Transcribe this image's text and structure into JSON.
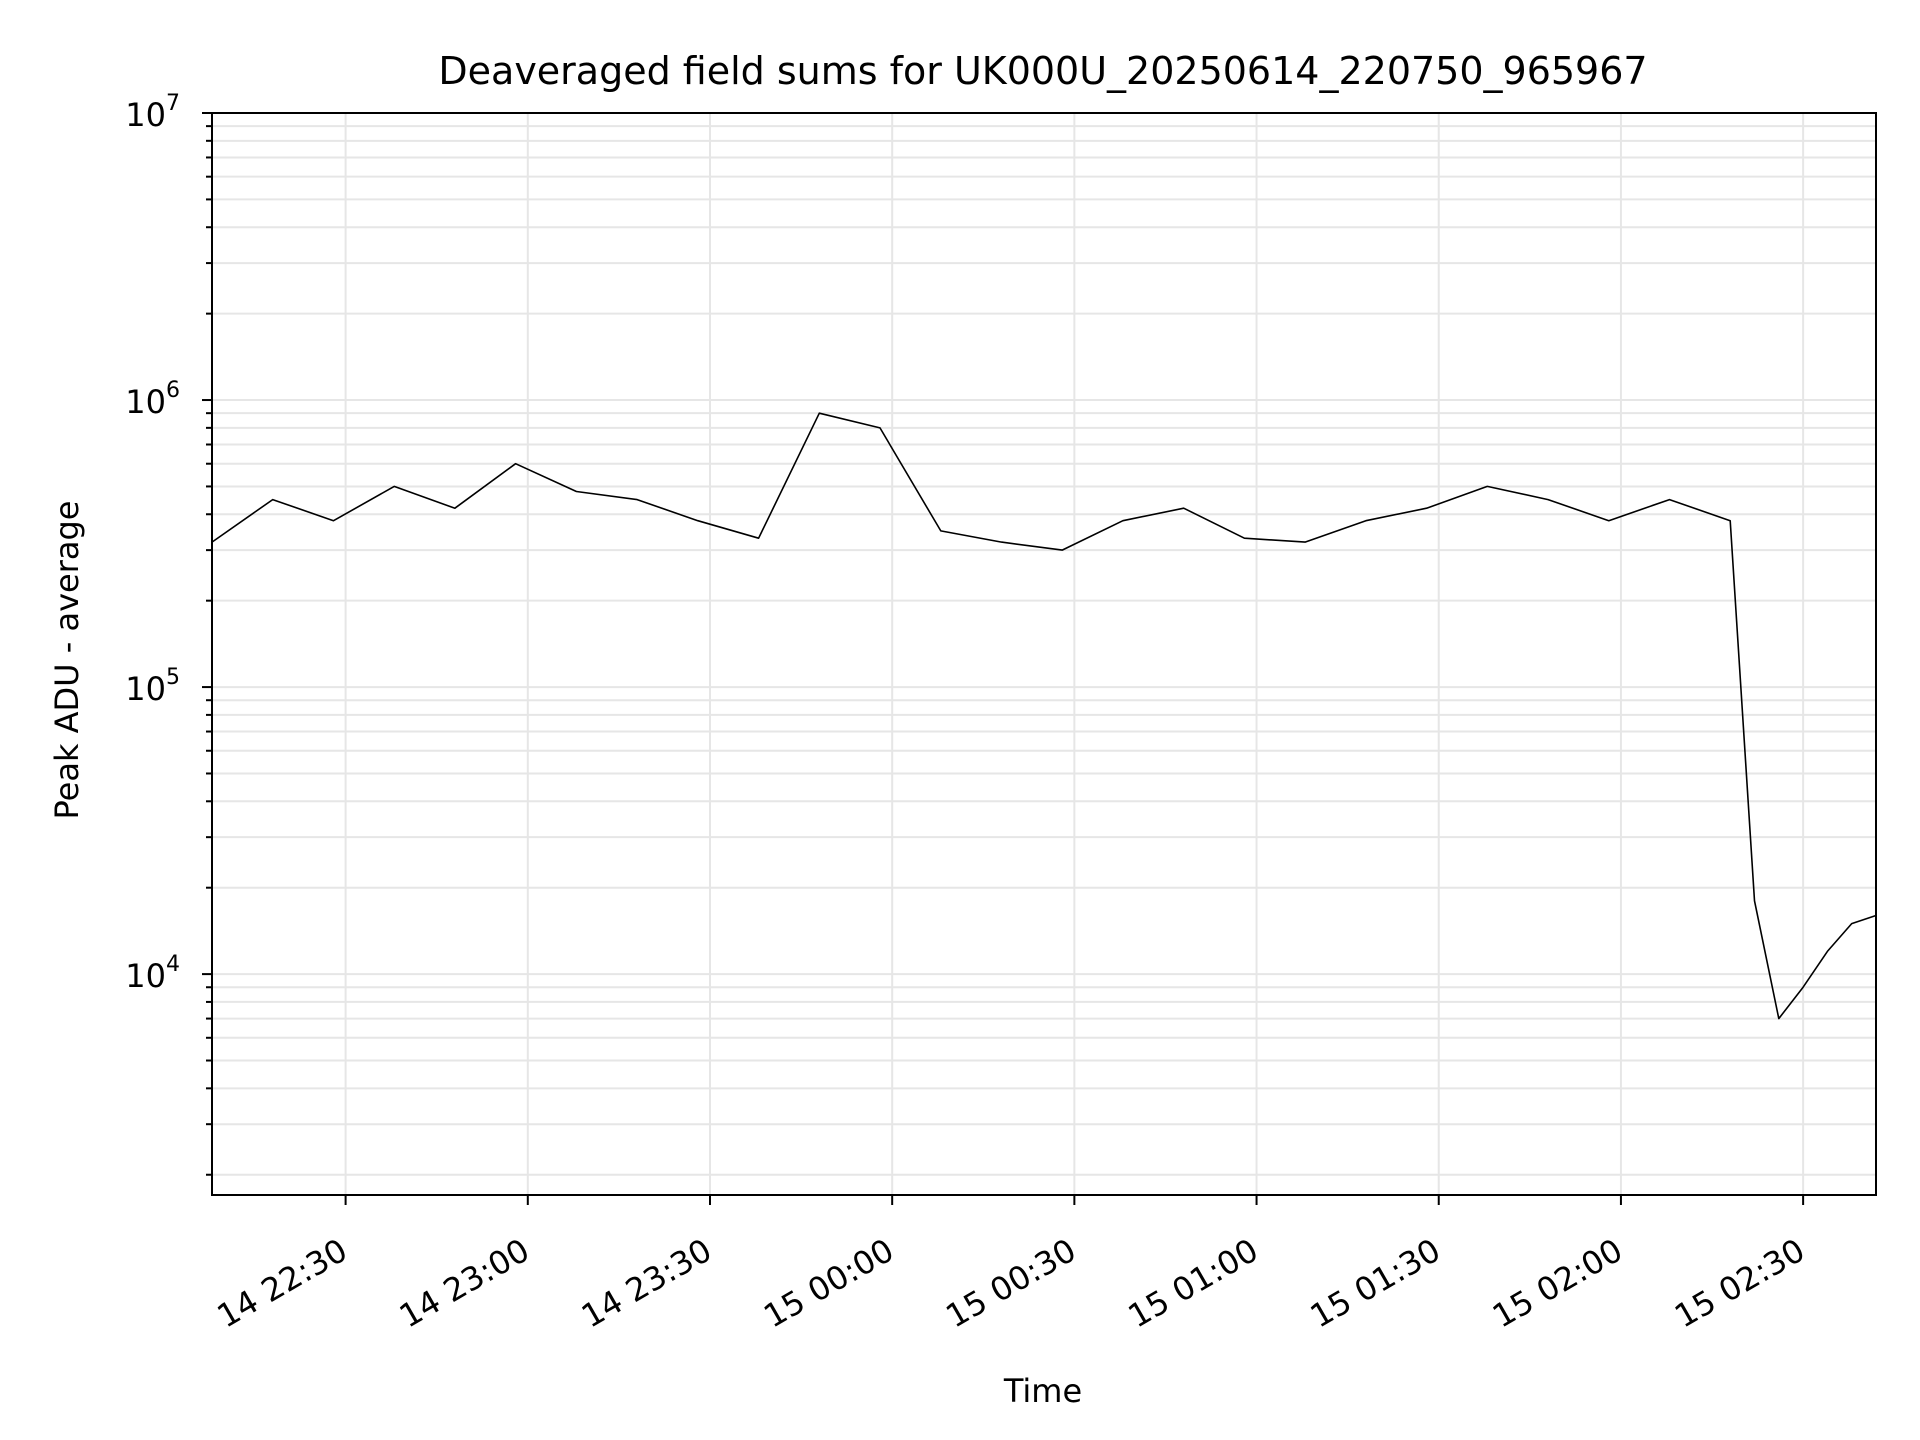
{
  "chart_data": {
    "type": "line",
    "title": "Deaveraged field sums for UK000U_20250614_220750_965967",
    "xlabel": "Time",
    "ylabel": "Peak ADU - average",
    "yscale": "log",
    "ylim": [
      1700,
      10000000
    ],
    "xlim": [
      "2025-06-14 22:08",
      "2025-06-15 02:42"
    ],
    "grid": true,
    "line_color": "#000000",
    "grid_color": "#e6e6e6",
    "x_tick_labels": [
      "14 22:30",
      "14 23:00",
      "14 23:30",
      "15 00:00",
      "15 00:30",
      "15 01:00",
      "15 01:30",
      "15 02:00",
      "15 02:30"
    ],
    "y_tick_labels": [
      {
        "base": "10",
        "exp": "4"
      },
      {
        "base": "10",
        "exp": "5"
      },
      {
        "base": "10",
        "exp": "6"
      },
      {
        "base": "10",
        "exp": "7"
      }
    ],
    "series": [
      {
        "x": [
          "2025-06-14 22:08",
          "2025-06-14 22:18",
          "2025-06-14 22:28",
          "2025-06-14 22:38",
          "2025-06-14 22:48",
          "2025-06-14 22:58",
          "2025-06-14 23:08",
          "2025-06-14 23:18",
          "2025-06-14 23:28",
          "2025-06-14 23:38",
          "2025-06-14 23:48",
          "2025-06-14 23:58",
          "2025-06-15 00:08",
          "2025-06-15 00:18",
          "2025-06-15 00:28",
          "2025-06-15 00:38",
          "2025-06-15 00:48",
          "2025-06-15 00:58",
          "2025-06-15 01:08",
          "2025-06-15 01:18",
          "2025-06-15 01:28",
          "2025-06-15 01:38",
          "2025-06-15 01:48",
          "2025-06-15 01:58",
          "2025-06-15 02:08",
          "2025-06-15 02:18",
          "2025-06-15 02:22",
          "2025-06-15 02:26",
          "2025-06-15 02:30",
          "2025-06-15 02:34",
          "2025-06-15 02:38",
          "2025-06-15 02:42"
        ],
        "y": [
          320000,
          450000,
          380000,
          500000,
          420000,
          600000,
          480000,
          450000,
          380000,
          330000,
          900000,
          800000,
          350000,
          320000,
          300000,
          380000,
          420000,
          330000,
          320000,
          380000,
          420000,
          500000,
          450000,
          380000,
          450000,
          380000,
          18000,
          7000,
          9000,
          12000,
          15000,
          16000
        ]
      }
    ]
  }
}
